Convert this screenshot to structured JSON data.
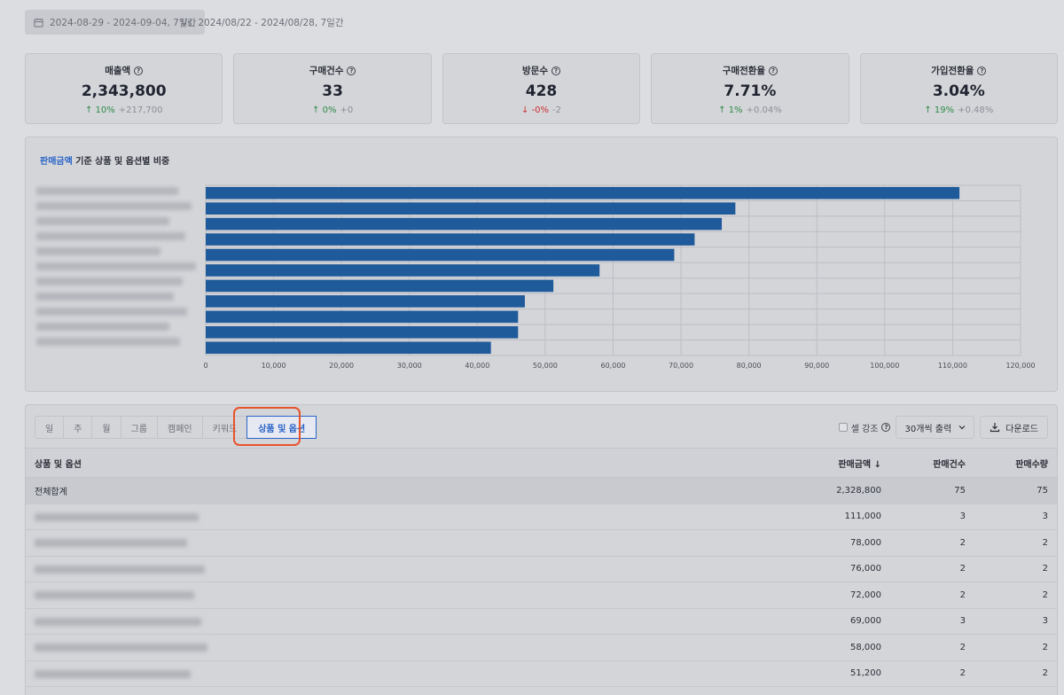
{
  "date_filter": {
    "range": "2024-08-29 - 2024-09-04, 7일간",
    "compare": "Vs. 2024/08/22 - 2024/08/28, 7일간"
  },
  "kpis": [
    {
      "title": "매출액",
      "value": "2,343,800",
      "dir": "up",
      "pct": "10%",
      "delta": "+217,700"
    },
    {
      "title": "구매건수",
      "value": "33",
      "dir": "up",
      "pct": "0%",
      "delta": "+0"
    },
    {
      "title": "방문수",
      "value": "428",
      "dir": "down",
      "pct": "-0%",
      "delta": "-2"
    },
    {
      "title": "구매전환율",
      "value": "7.71%",
      "dir": "up",
      "pct": "1%",
      "delta": "+0.04%"
    },
    {
      "title": "가입전환율",
      "value": "3.04%",
      "dir": "up",
      "pct": "19%",
      "delta": "+0.48%"
    }
  ],
  "chart_card": {
    "title_accent": "판매금액",
    "title_rest": " 기준 상품 및 옵션별 비중"
  },
  "chart_data": {
    "type": "bar",
    "orientation": "horizontal",
    "values": [
      111000,
      78000,
      76000,
      72000,
      69000,
      58000,
      51200,
      47000,
      46000,
      46000,
      42000
    ],
    "xlim": [
      0,
      120000
    ],
    "xticks": [
      "0",
      "10,000",
      "20,000",
      "30,000",
      "40,000",
      "50,000",
      "60,000",
      "70,000",
      "80,000",
      "90,000",
      "100,000",
      "110,000",
      "120,000"
    ],
    "grid": true,
    "color": "#1f5a9a"
  },
  "tabs": [
    "일",
    "주",
    "월",
    "그룹",
    "캠페인",
    "키워드",
    "상품 및 옵션"
  ],
  "tools": {
    "cell_emphasis": "셀 강조",
    "page_size": "30개씩 출력",
    "download": "다운로드"
  },
  "table": {
    "headers": {
      "name": "상품 및 옵션",
      "amount": "판매금액 ↓",
      "count": "판매건수",
      "qty": "판매수량"
    },
    "total": {
      "name": "전체합계",
      "amount": "2,328,800",
      "count": "75",
      "qty": "75"
    },
    "rows": [
      {
        "amount": "111,000",
        "count": "3",
        "qty": "3"
      },
      {
        "amount": "78,000",
        "count": "2",
        "qty": "2"
      },
      {
        "amount": "76,000",
        "count": "2",
        "qty": "2"
      },
      {
        "amount": "72,000",
        "count": "2",
        "qty": "2"
      },
      {
        "amount": "69,000",
        "count": "3",
        "qty": "3"
      },
      {
        "amount": "58,000",
        "count": "2",
        "qty": "2"
      },
      {
        "amount": "51,200",
        "count": "2",
        "qty": "2"
      }
    ]
  }
}
